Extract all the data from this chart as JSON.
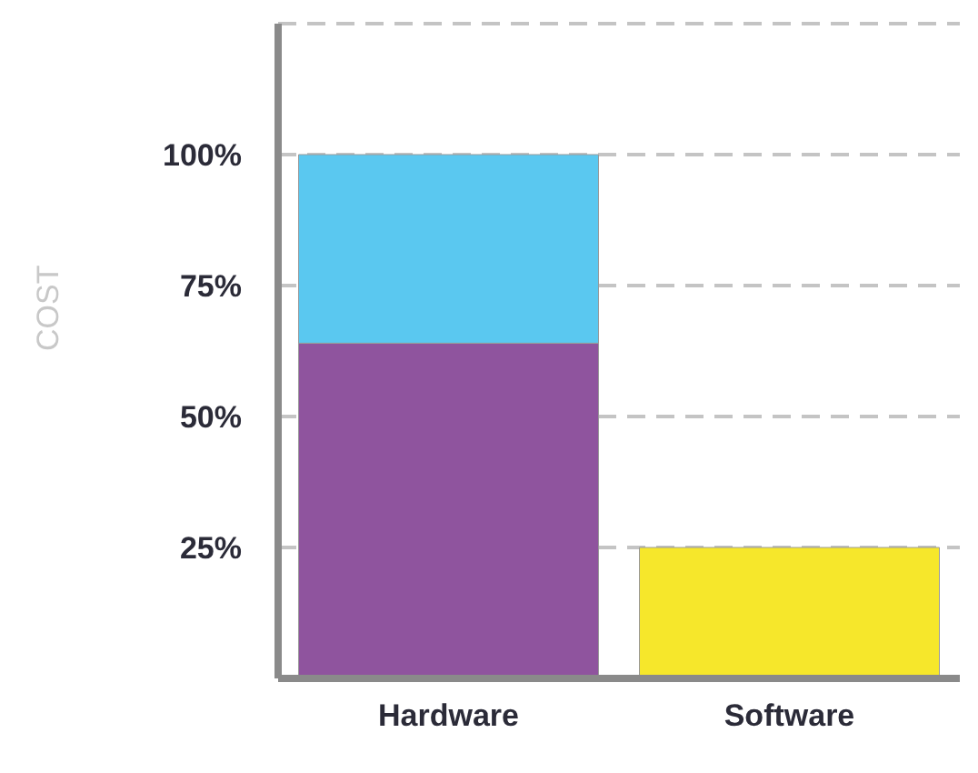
{
  "chart_data": {
    "type": "bar",
    "stacked": true,
    "ylabel": "COST",
    "categories": [
      "Hardware",
      "Software"
    ],
    "series": [
      {
        "colors": [
          "#8f549e",
          "#f6e72b"
        ],
        "values": [
          64,
          25
        ]
      },
      {
        "color": "#5ac8f0",
        "values": [
          36,
          null
        ]
      }
    ],
    "ylim": [
      0,
      125
    ],
    "yticks": [
      {
        "value": 25,
        "label": "25%"
      },
      {
        "value": 50,
        "label": "50%"
      },
      {
        "value": 75,
        "label": "75%"
      },
      {
        "value": 100,
        "label": "100%"
      }
    ],
    "grid": "y",
    "line_style": "dashed",
    "legend": false
  }
}
